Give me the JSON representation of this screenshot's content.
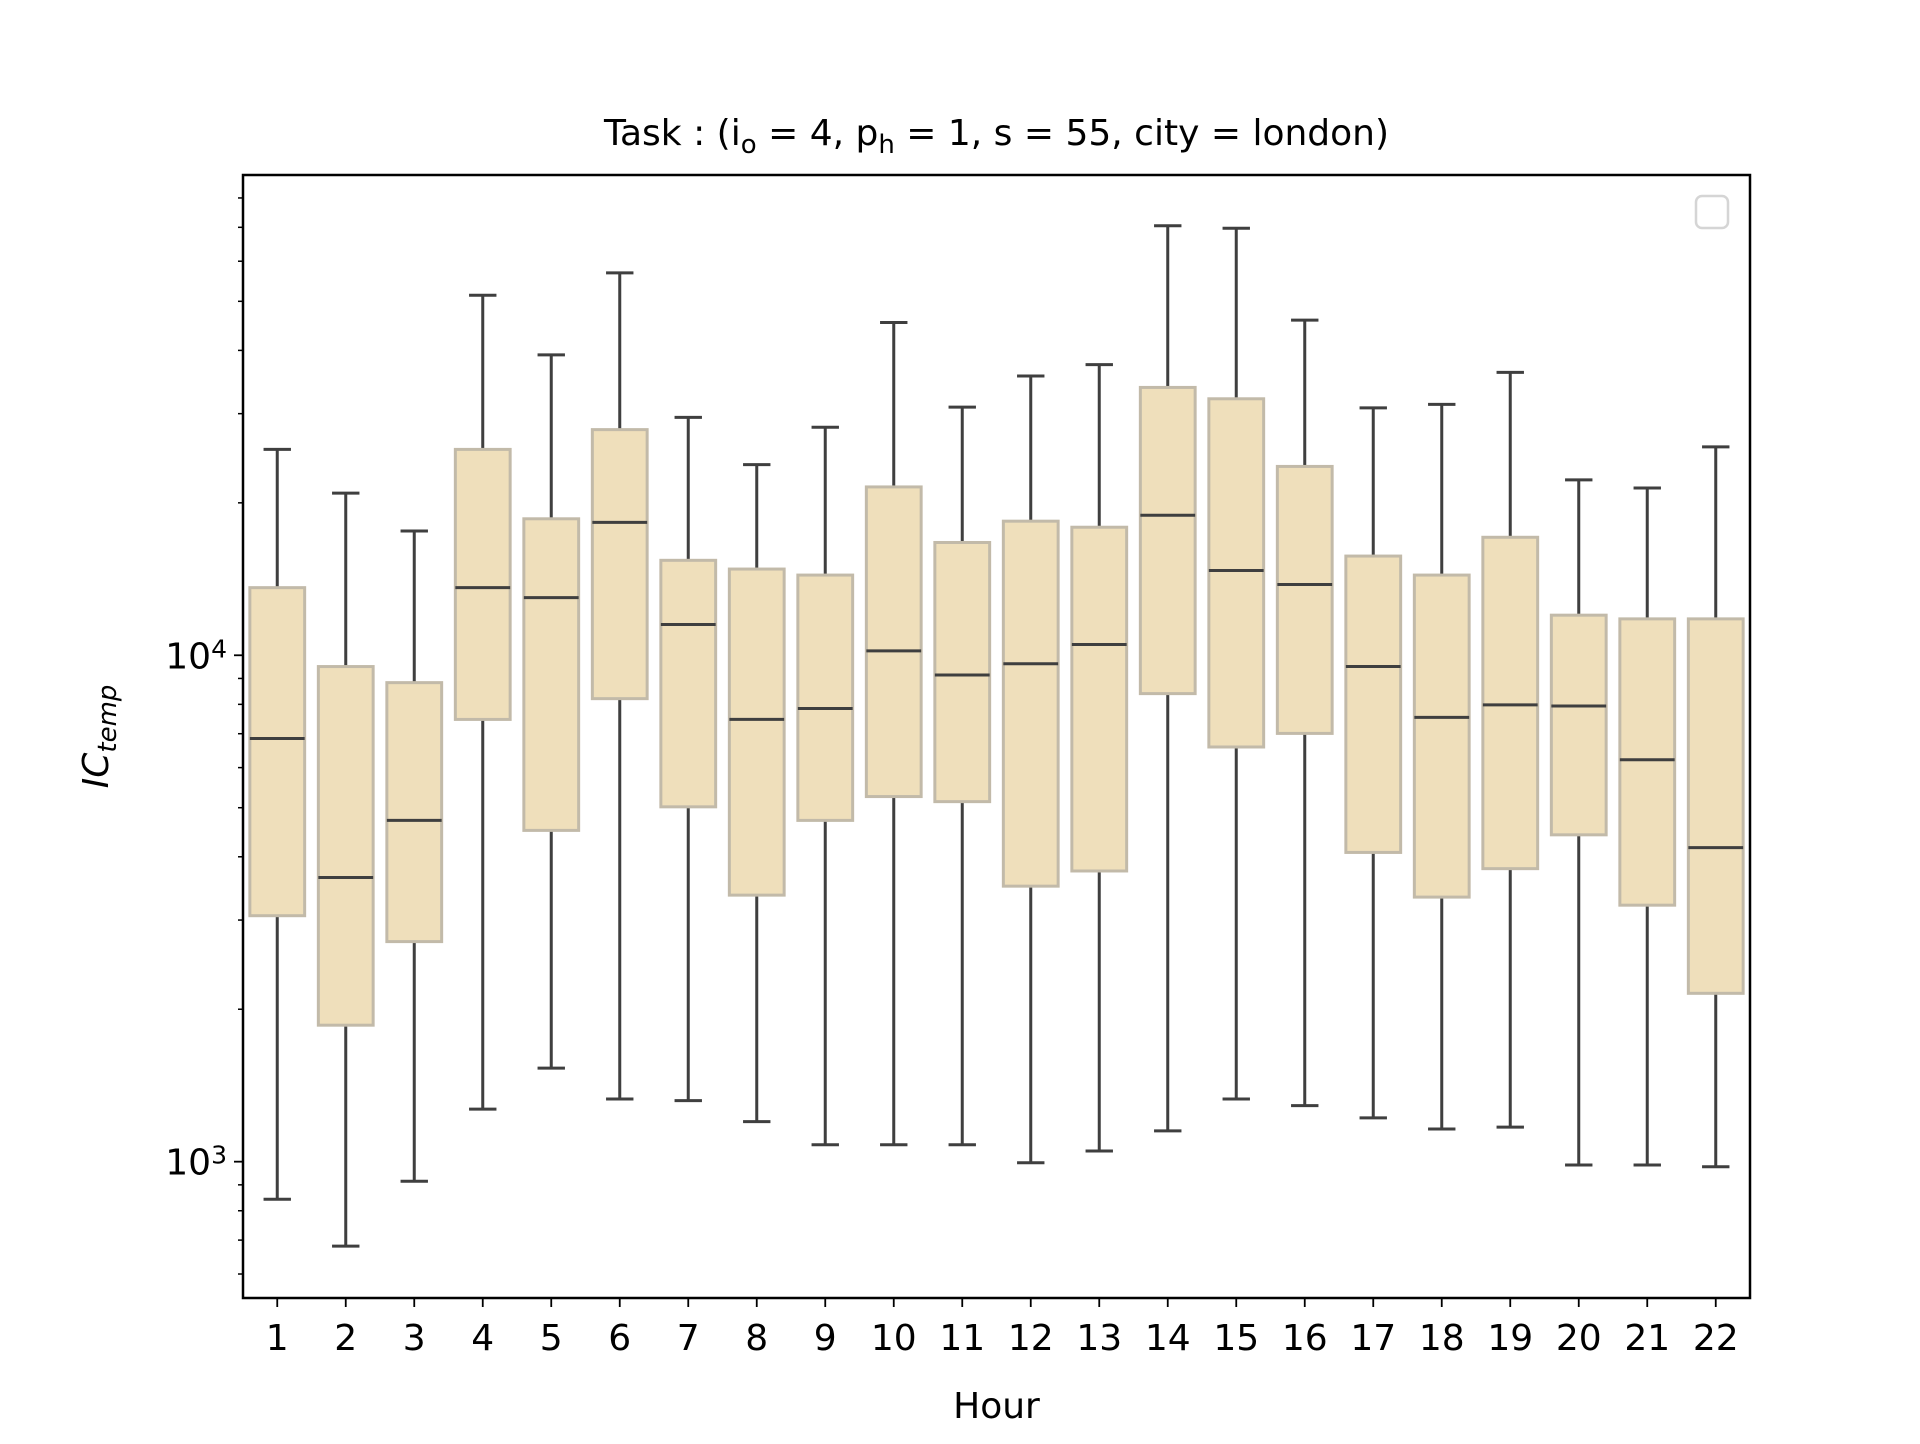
{
  "chart_data": {
    "type": "box",
    "title": "Task : (i_o = 4, p_h = 1, s = 55, city = london)",
    "x_label": "Hour",
    "y_label": "IC_temp",
    "categories": [
      "1",
      "2",
      "3",
      "4",
      "5",
      "6",
      "7",
      "8",
      "9",
      "10",
      "11",
      "12",
      "13",
      "14",
      "15",
      "16",
      "17",
      "18",
      "19",
      "20",
      "21",
      "22"
    ],
    "whisker_low": [
      843,
      681,
      915,
      1270,
      1530,
      1330,
      1320,
      1200,
      1080,
      1080,
      1080,
      995,
      1050,
      1150,
      1330,
      1290,
      1220,
      1160,
      1170,
      985,
      985,
      977
    ],
    "q1": [
      3060,
      1860,
      2720,
      7470,
      4510,
      8210,
      5020,
      3360,
      4720,
      5260,
      5140,
      3500,
      3750,
      8400,
      6590,
      7010,
      4080,
      3330,
      3790,
      4420,
      3210,
      2150
    ],
    "median": [
      6850,
      3640,
      4720,
      13600,
      13000,
      18300,
      11500,
      7470,
      7850,
      10200,
      9140,
      9620,
      10500,
      18900,
      14700,
      13800,
      9500,
      7540,
      7980,
      7940,
      6220,
      4170
    ],
    "q3": [
      13600,
      9500,
      8830,
      25500,
      18600,
      27900,
      15400,
      14800,
      14400,
      21500,
      16700,
      18400,
      17900,
      33800,
      32100,
      23600,
      15700,
      14400,
      17100,
      12000,
      11800,
      11800
    ],
    "whisker_high": [
      25500,
      20900,
      17600,
      51400,
      39200,
      56900,
      29500,
      23800,
      28200,
      45400,
      30900,
      35600,
      37500,
      70500,
      69700,
      45900,
      30800,
      31300,
      36200,
      22200,
      21400,
      25800
    ],
    "box_color": "#efdfbb",
    "edge_color": "#c2baa9",
    "line_color": "#3f3f3f",
    "y_scale": "log",
    "ylim": [
      538,
      88800
    ],
    "yticks": [
      {
        "value": 1000,
        "label": "10^3"
      },
      {
        "value": 10000,
        "label": "10^4"
      }
    ],
    "yminorticks": [
      600,
      700,
      800,
      900,
      2000,
      3000,
      4000,
      5000,
      6000,
      7000,
      8000,
      9000,
      20000,
      30000,
      40000,
      50000,
      60000,
      70000,
      80000
    ],
    "legend": "upper right"
  }
}
